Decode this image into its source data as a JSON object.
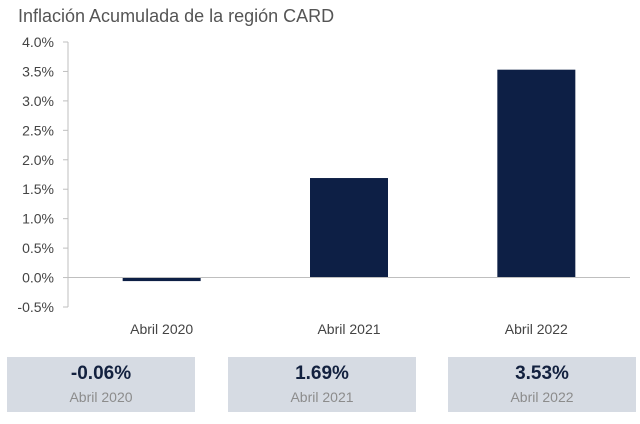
{
  "chart_data": {
    "type": "bar",
    "title": "Inflación Acumulada de la región CARD",
    "categories": [
      "Abril 2020",
      "Abril 2021",
      "Abril 2022"
    ],
    "values": [
      -0.06,
      1.69,
      3.53
    ],
    "unit": "%",
    "ylim": [
      -0.5,
      4.0
    ],
    "ytick_labels": [
      "4.0%",
      "3.5%",
      "3.0%",
      "2.5%",
      "2.0%",
      "1.5%",
      "1.0%",
      "0.5%",
      "0.0%",
      "-0.5%"
    ],
    "ytick_values": [
      4.0,
      3.5,
      3.0,
      2.5,
      2.0,
      1.5,
      1.0,
      0.5,
      0.0,
      -0.5
    ],
    "grid": false,
    "bar_color": "#0d1f45"
  },
  "summary_cards": [
    {
      "value": "-0.06%",
      "label": "Abril 2020"
    },
    {
      "value": "1.69%",
      "label": "Abril 2021"
    },
    {
      "value": "3.53%",
      "label": "Abril 2022"
    }
  ],
  "colors": {
    "card_bg": "#d6dbe3",
    "card_value": "#13213f",
    "card_label": "#8c8c8c"
  }
}
